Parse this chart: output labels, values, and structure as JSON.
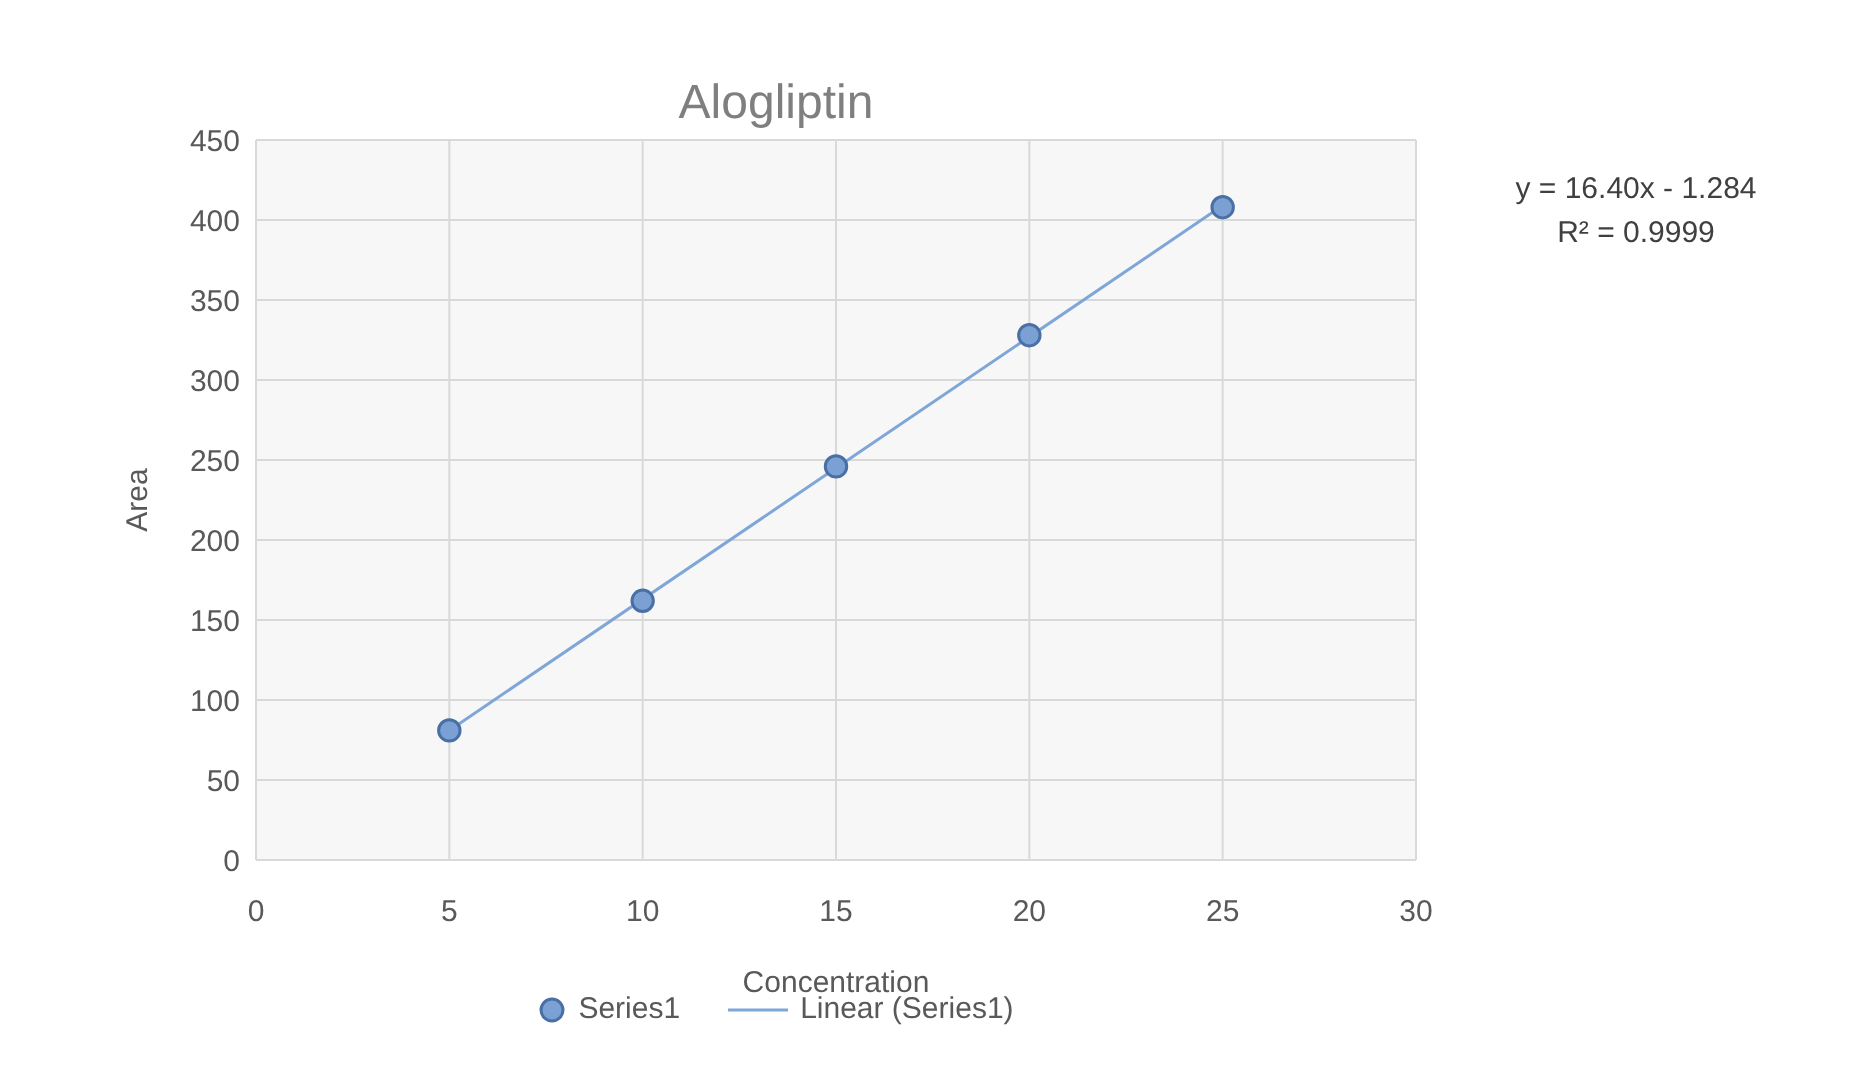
{
  "chart_data": {
    "type": "scatter",
    "title": "Alogliptin",
    "xlabel": "Concentration",
    "ylabel": "Area",
    "xlim": [
      0,
      30
    ],
    "xticks": [
      0,
      5,
      10,
      15,
      20,
      25,
      30
    ],
    "ylim": [
      0,
      450
    ],
    "yticks": [
      0,
      50,
      100,
      150,
      200,
      250,
      300,
      350,
      400,
      450
    ],
    "series": [
      {
        "name": "Series1",
        "color": "#7aa0d4",
        "marker": "circle",
        "x": [
          5,
          10,
          15,
          20,
          25
        ],
        "values": [
          81,
          162,
          246,
          328,
          408
        ]
      },
      {
        "name": "Linear (Series1)",
        "type": "line",
        "color": "#7ea6d8",
        "marker": "none",
        "x": [
          5,
          25
        ],
        "values": [
          81,
          409
        ]
      }
    ],
    "annotations": [
      "y = 16.40x - 1.284",
      "R² = 0.9999"
    ],
    "grid": true,
    "legend": "bottom",
    "line_style": "solid"
  }
}
